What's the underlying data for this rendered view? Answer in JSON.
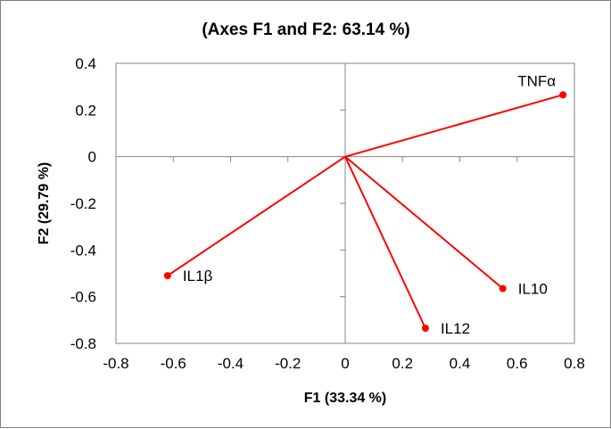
{
  "chart_data": {
    "type": "scatter",
    "title": "(Axes F1 and F2: 63.14 %)",
    "xlabel": "F1 (33.34 %)",
    "ylabel": "F2 (29.79 %)",
    "xlim": [
      -0.8,
      0.8
    ],
    "ylim": [
      -0.8,
      0.4
    ],
    "xticks": [
      "-0.8",
      "-0.6",
      "-0.4",
      "-0.2",
      "0",
      "0.2",
      "0.4",
      "0.6",
      "0.8"
    ],
    "yticks": [
      "0.4",
      "0.2",
      "0",
      "-0.2",
      "-0.4",
      "-0.6",
      "-0.8"
    ],
    "grid": false,
    "vectors_from_origin": true,
    "line_color": "#ff0000",
    "points": [
      {
        "label": "TNFα",
        "x": 0.76,
        "y": 0.265
      },
      {
        "label": "IL1β",
        "x": -0.62,
        "y": -0.51
      },
      {
        "label": "IL10",
        "x": 0.55,
        "y": -0.565
      },
      {
        "label": "IL12",
        "x": 0.28,
        "y": -0.735
      }
    ]
  }
}
